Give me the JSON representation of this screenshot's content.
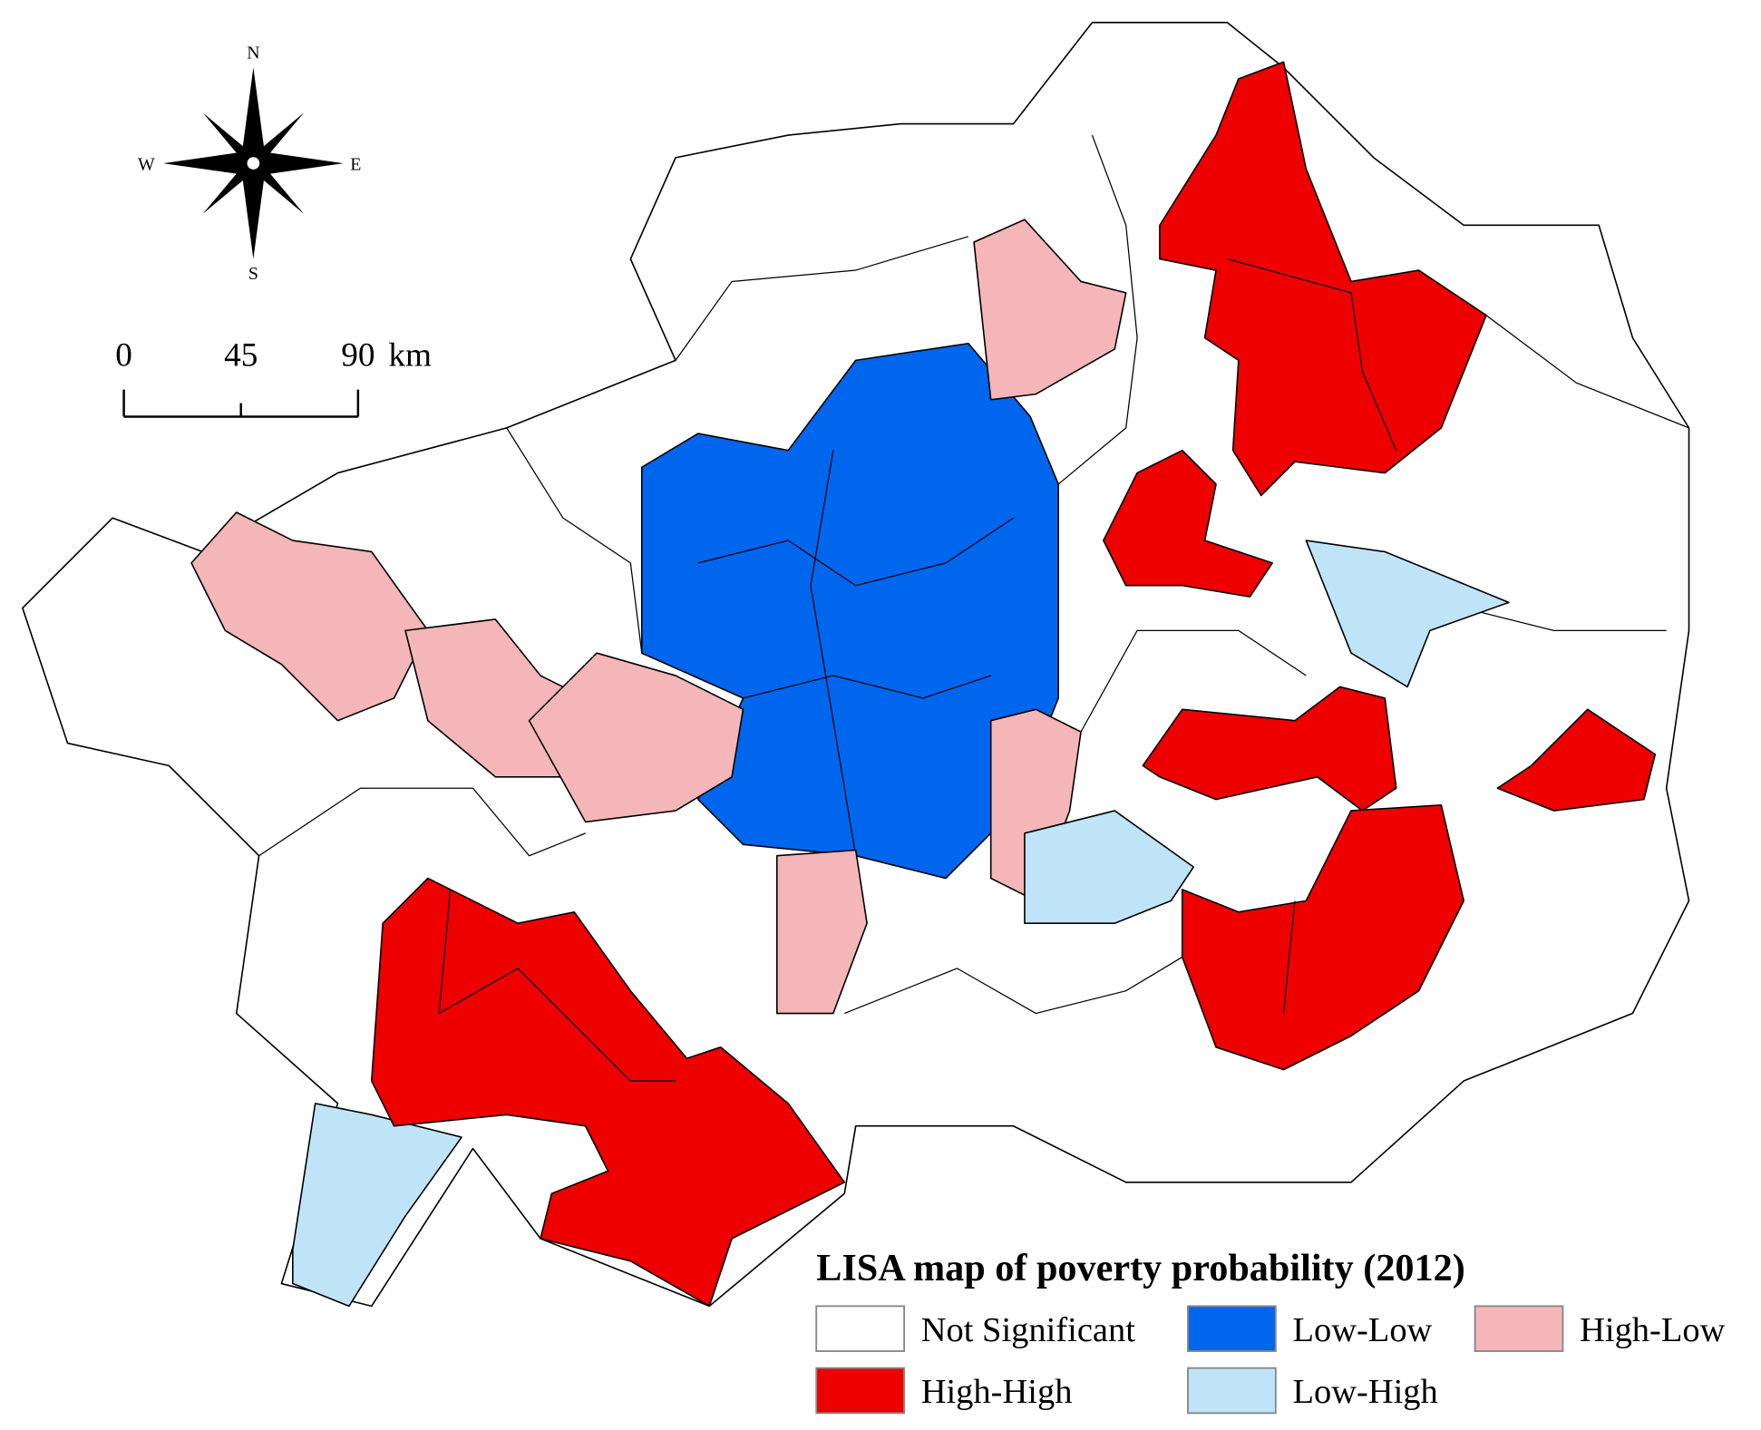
{
  "map": {
    "compass": {
      "north": "N",
      "south": "S",
      "east": "E",
      "west": "W"
    },
    "scale_bar": {
      "ticks": [
        0,
        45,
        90
      ],
      "unit": "km"
    },
    "legend": {
      "title": "LISA map of poverty probability (2012)",
      "items": [
        {
          "label": "Not Significant",
          "color": "#ffffff"
        },
        {
          "label": "Low-Low",
          "color": "#0066ee"
        },
        {
          "label": "High-Low",
          "color": "#f4b6b8"
        },
        {
          "label": "High-High",
          "color": "#ee0000"
        },
        {
          "label": "Low-High",
          "color": "#bfe4f8"
        }
      ]
    }
  }
}
